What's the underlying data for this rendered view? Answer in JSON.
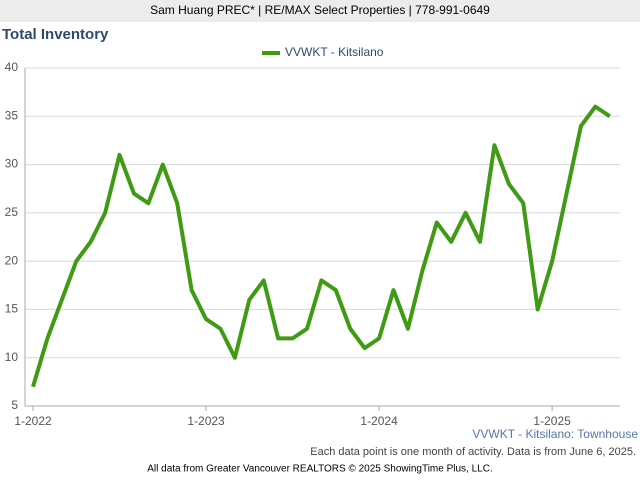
{
  "header": "Sam Huang PREC* | RE/MAX Select Properties | 778-991-0649",
  "chart_data": {
    "type": "line",
    "title": "Total Inventory",
    "categories": [
      "1-2022",
      null,
      null,
      null,
      null,
      null,
      null,
      null,
      null,
      null,
      null,
      null,
      "1-2023",
      null,
      null,
      null,
      null,
      null,
      null,
      null,
      null,
      null,
      null,
      null,
      "1-2024",
      null,
      null,
      null,
      null,
      null,
      null,
      null,
      null,
      null,
      null,
      null,
      "1-2025",
      null,
      null,
      null,
      null
    ],
    "series": [
      {
        "name": "VVWKT - Kitsilano",
        "color": "#3f9a14",
        "values": [
          7,
          12,
          16,
          20,
          22,
          25,
          31,
          27,
          26,
          30,
          26,
          17,
          14,
          13,
          10,
          16,
          18,
          12,
          12,
          13,
          18,
          17,
          13,
          11,
          12,
          17,
          13,
          19,
          24,
          22,
          25,
          22,
          32,
          28,
          26,
          15,
          20,
          27,
          34,
          36,
          35
        ]
      }
    ],
    "ylim": [
      5,
      40
    ],
    "yticks": [
      5,
      10,
      15,
      20,
      25,
      30,
      35,
      40
    ],
    "grid": true,
    "subtitle": "VVWKT - Kitsilano: Townhouse",
    "note": "Each data point is one month of activity. Data is from June 6, 2025.",
    "source": "All data from Greater Vancouver REALTORS © 2025 ShowingTime Plus, LLC."
  }
}
